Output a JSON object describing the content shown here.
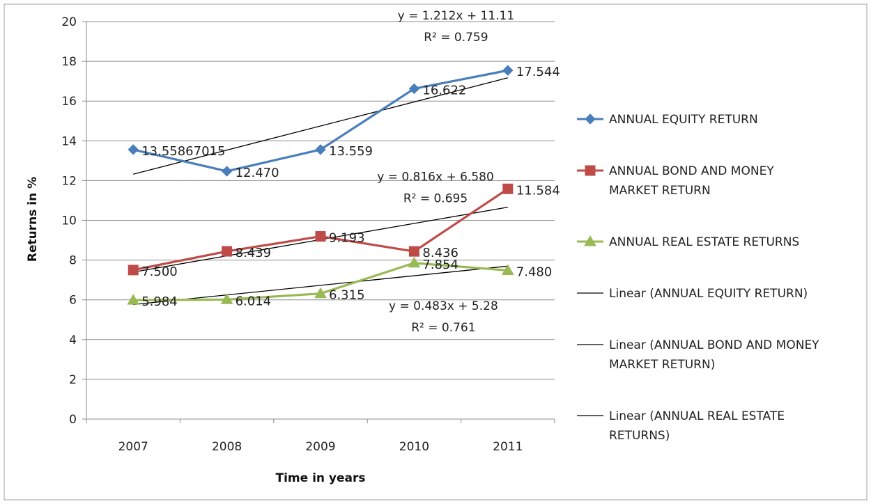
{
  "chart_data": {
    "type": "line",
    "title": "",
    "xlabel": "Time in years",
    "ylabel": "Returns in %",
    "ylim": [
      0,
      20
    ],
    "ytick_step": 2,
    "grid": "horizontal",
    "legend_position": "right",
    "categories": [
      "2007",
      "2008",
      "2009",
      "2010",
      "2011"
    ],
    "series": [
      {
        "name": "ANNUAL EQUITY RETURN",
        "values": [
          13.55867015,
          12.47,
          13.559,
          16.622,
          17.544
        ],
        "labels": [
          "13.55867015",
          "12.470",
          "13.559",
          "16.622",
          "17.544"
        ],
        "color": "#4A7EBB",
        "marker": "diamond"
      },
      {
        "name": "ANNUAL BOND AND MONEY MARKET RETURN",
        "values": [
          7.5,
          8.439,
          9.193,
          8.436,
          11.584
        ],
        "labels": [
          "7.500",
          "8.439",
          "9.193",
          "8.436",
          "11.584"
        ],
        "color": "#BE4B48",
        "marker": "square"
      },
      {
        "name": "ANNUAL REAL ESTATE RETURNS",
        "values": [
          5.984,
          6.014,
          6.315,
          7.854,
          7.48
        ],
        "labels": [
          "5.984",
          "6.014",
          "6.315",
          "7.854",
          "7.480"
        ],
        "color": "#98B954",
        "marker": "triangle"
      }
    ],
    "trendlines": [
      {
        "name": "Linear (ANNUAL EQUITY RETURN)",
        "slope": 1.212,
        "intercept": 11.11,
        "equation": "y = 1.212x + 11.11",
        "r2": "R² = 0.759",
        "color": "#000000"
      },
      {
        "name": "Linear (ANNUAL BOND AND MONEY MARKET RETURN)",
        "slope": 0.816,
        "intercept": 6.58,
        "equation": "y = 0.816x + 6.580",
        "r2": "R² = 0.695",
        "color": "#000000"
      },
      {
        "name": "Linear (ANNUAL REAL ESTATE RETURNS)",
        "slope": 0.483,
        "intercept": 5.28,
        "equation": "y = 0.483x + 5.28",
        "r2": "R² = 0.761",
        "color": "#000000"
      }
    ],
    "legend_entries": [
      {
        "lines": [
          "ANNUAL EQUITY RETURN"
        ],
        "type": "series",
        "index": 0
      },
      {
        "lines": [
          "ANNUAL BOND AND MONEY",
          "MARKET RETURN"
        ],
        "type": "series",
        "index": 1
      },
      {
        "lines": [
          "ANNUAL REAL ESTATE RETURNS"
        ],
        "type": "series",
        "index": 2
      },
      {
        "lines": [
          "Linear (ANNUAL EQUITY RETURN)"
        ],
        "type": "trend",
        "index": 0
      },
      {
        "lines": [
          "Linear (ANNUAL BOND AND MONEY",
          "MARKET RETURN)"
        ],
        "type": "trend",
        "index": 1
      },
      {
        "lines": [
          "Linear (ANNUAL REAL ESTATE",
          "RETURNS)"
        ],
        "type": "trend",
        "index": 2
      }
    ]
  }
}
